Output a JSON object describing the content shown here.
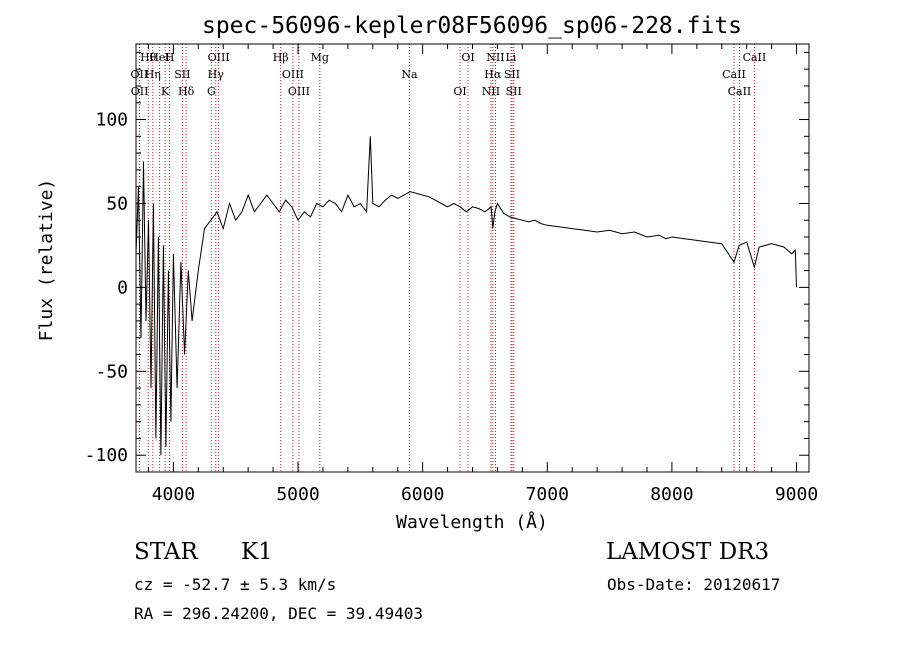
{
  "chart_data": {
    "type": "line",
    "title": "spec-56096-kepler08F56096_sp06-228.fits",
    "xlabel": "Wavelength (Å)",
    "ylabel": "Flux (relative)",
    "xlim": [
      3700,
      9100
    ],
    "ylim": [
      -110,
      145
    ],
    "x_ticks": [
      4000,
      5000,
      6000,
      7000,
      8000,
      9000
    ],
    "x_tick_labels": [
      "4000",
      "5000",
      "6000",
      "7000",
      "8000",
      "9000"
    ],
    "y_ticks": [
      -100,
      -50,
      0,
      50,
      100
    ],
    "y_tick_labels": [
      "-100",
      "-50",
      "0",
      "50",
      "100"
    ],
    "series": [
      {
        "name": "flux",
        "color": "#000000",
        "x": [
          3700,
          3720,
          3740,
          3760,
          3780,
          3800,
          3820,
          3840,
          3860,
          3880,
          3900,
          3920,
          3940,
          3960,
          3980,
          4000,
          4030,
          4060,
          4090,
          4120,
          4150,
          4200,
          4250,
          4300,
          4350,
          4400,
          4450,
          4500,
          4550,
          4600,
          4650,
          4700,
          4750,
          4800,
          4850,
          4900,
          4950,
          5000,
          5050,
          5100,
          5150,
          5200,
          5250,
          5300,
          5350,
          5400,
          5450,
          5500,
          5550,
          5580,
          5600,
          5650,
          5700,
          5750,
          5800,
          5850,
          5900,
          5950,
          6000,
          6050,
          6100,
          6150,
          6200,
          6250,
          6300,
          6350,
          6400,
          6450,
          6500,
          6550,
          6563,
          6580,
          6600,
          6650,
          6700,
          6750,
          6800,
          6850,
          6900,
          6950,
          7000,
          7100,
          7200,
          7300,
          7400,
          7500,
          7600,
          7700,
          7800,
          7900,
          7950,
          8000,
          8100,
          8200,
          8300,
          8400,
          8498,
          8540,
          8600,
          8662,
          8700,
          8800,
          8900,
          8960,
          8990,
          9000
        ],
        "y": [
          20,
          60,
          -30,
          75,
          -20,
          40,
          -60,
          50,
          -90,
          30,
          -100,
          25,
          -95,
          10,
          -80,
          20,
          -60,
          15,
          -40,
          10,
          -20,
          10,
          35,
          40,
          45,
          35,
          50,
          40,
          45,
          55,
          45,
          50,
          55,
          50,
          45,
          52,
          48,
          40,
          45,
          42,
          50,
          48,
          52,
          50,
          45,
          55,
          48,
          50,
          45,
          90,
          50,
          48,
          52,
          55,
          53,
          55,
          57,
          56,
          55,
          54,
          52,
          50,
          48,
          50,
          48,
          45,
          48,
          47,
          45,
          48,
          35,
          45,
          50,
          44,
          42,
          41,
          40,
          39,
          40,
          38,
          37,
          36,
          35,
          34,
          33,
          34,
          32,
          33,
          30,
          31,
          29,
          30,
          29,
          28,
          27,
          26,
          15,
          25,
          27,
          12,
          24,
          26,
          24,
          20,
          22,
          0
        ]
      }
    ],
    "line_markers": [
      {
        "label": "Hθ",
        "wavelength": 3798
      },
      {
        "label": "OII",
        "wavelength": 3727
      },
      {
        "label": "OII",
        "wavelength": 3729
      },
      {
        "label": "HeI",
        "wavelength": 3889
      },
      {
        "label": "Hη",
        "wavelength": 3835
      },
      {
        "label": "K",
        "wavelength": 3934
      },
      {
        "label": "H",
        "wavelength": 3969
      },
      {
        "label": "SII",
        "wavelength": 4072
      },
      {
        "label": "Hδ",
        "wavelength": 4102
      },
      {
        "label": "OIII",
        "wavelength": 4363
      },
      {
        "label": "Hγ",
        "wavelength": 4340
      },
      {
        "label": "G",
        "wavelength": 4305
      },
      {
        "label": "Hβ",
        "wavelength": 4861
      },
      {
        "label": "OIII",
        "wavelength": 4959
      },
      {
        "label": "OIII",
        "wavelength": 5007
      },
      {
        "label": "Mg",
        "wavelength": 5175
      },
      {
        "label": "Na",
        "wavelength": 5894
      },
      {
        "label": "OI",
        "wavelength": 6300
      },
      {
        "label": "OI",
        "wavelength": 6364
      },
      {
        "label": "Hα",
        "wavelength": 6563
      },
      {
        "label": "NII",
        "wavelength": 6548
      },
      {
        "label": "NII",
        "wavelength": 6584
      },
      {
        "label": "SII",
        "wavelength": 6717
      },
      {
        "label": "SII",
        "wavelength": 6731
      },
      {
        "label": "Li",
        "wavelength": 6708
      },
      {
        "label": "CaII",
        "wavelength": 8498
      },
      {
        "label": "CaII",
        "wavelength": 8542
      },
      {
        "label": "CaII",
        "wavelength": 8662
      }
    ]
  },
  "info": {
    "object_class": "STAR",
    "subclass": "K1",
    "survey": "LAMOST DR3",
    "redshift": "cz = -52.7 ± 5.3 km/s",
    "obs_date": "Obs-Date: 20120617",
    "coords": "RA = 296.24200, DEC =  39.49403"
  }
}
